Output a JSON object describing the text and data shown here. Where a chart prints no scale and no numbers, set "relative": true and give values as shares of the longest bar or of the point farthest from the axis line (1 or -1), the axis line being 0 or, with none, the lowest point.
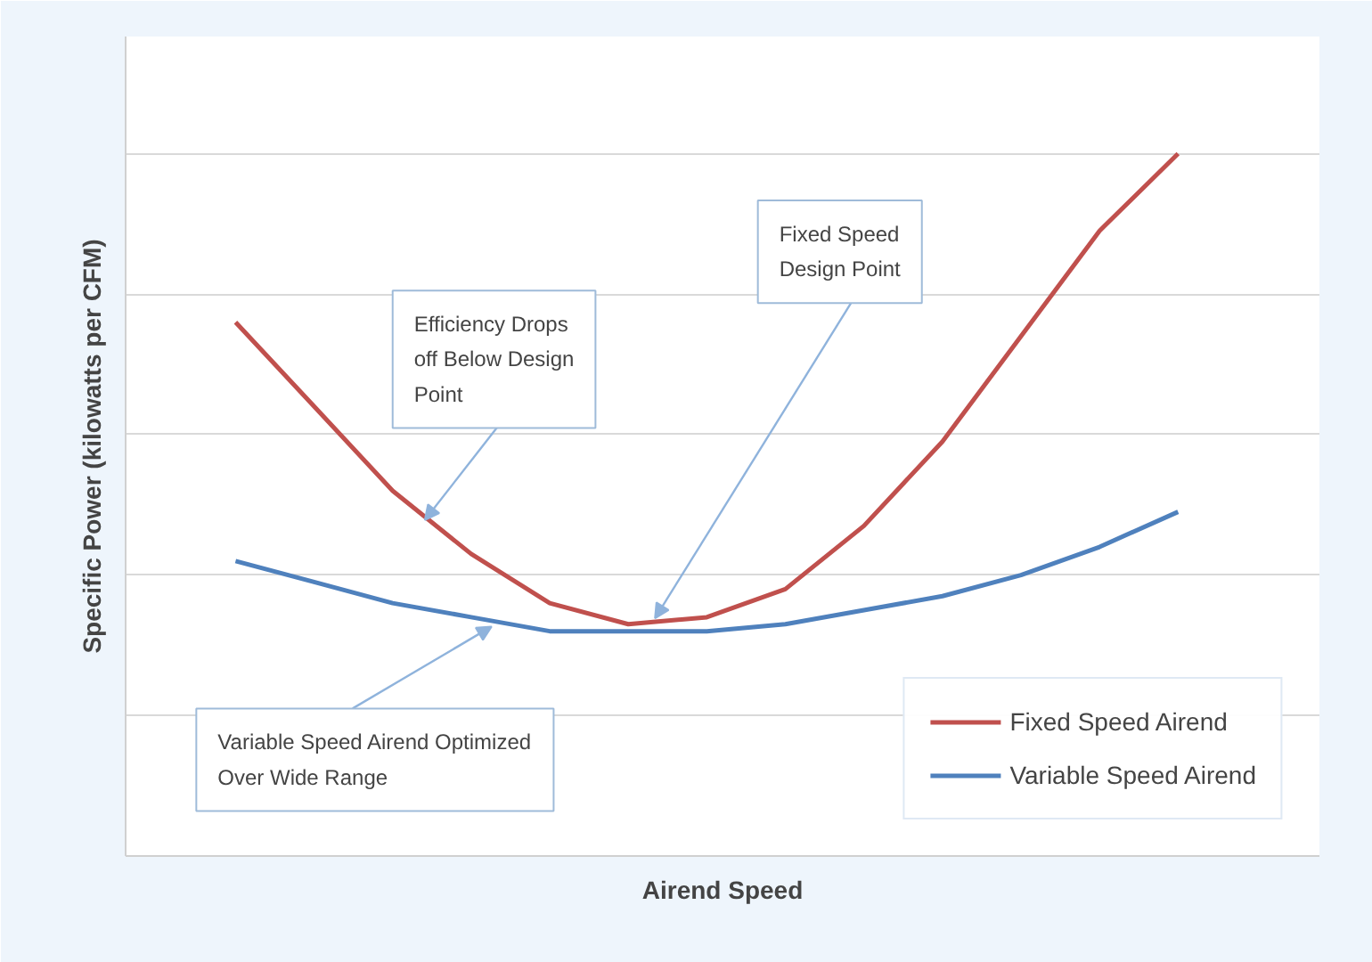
{
  "chart_data": {
    "type": "line",
    "relative": true,
    "xlabel": "Airend Speed",
    "ylabel": "Specific Power (kilowatts per CFM)",
    "categories": [
      null,
      null,
      null,
      null,
      null,
      null,
      null,
      null,
      null,
      null,
      null,
      null,
      null
    ],
    "series": [
      {
        "name": "Fixed Speed Airend",
        "color": "#c0504d",
        "values": [
          0.76,
          0.64,
          0.52,
          0.43,
          0.36,
          0.33,
          0.34,
          0.38,
          0.47,
          0.59,
          0.74,
          0.89,
          1.0
        ]
      },
      {
        "name": "Variable Speed Airend",
        "color": "#4f81bd",
        "values": [
          0.42,
          0.39,
          0.36,
          0.34,
          0.32,
          0.32,
          0.32,
          0.33,
          0.35,
          0.37,
          0.4,
          0.44,
          0.49
        ]
      }
    ],
    "annotations": [
      "Efficiency Drops off Below Design Point",
      "Fixed Speed Design Point",
      "Variable Speed Airend Optimized Over Wide Range"
    ],
    "grid": "y",
    "legend": "bottom right",
    "marker": "none",
    "line_style": "solid"
  }
}
